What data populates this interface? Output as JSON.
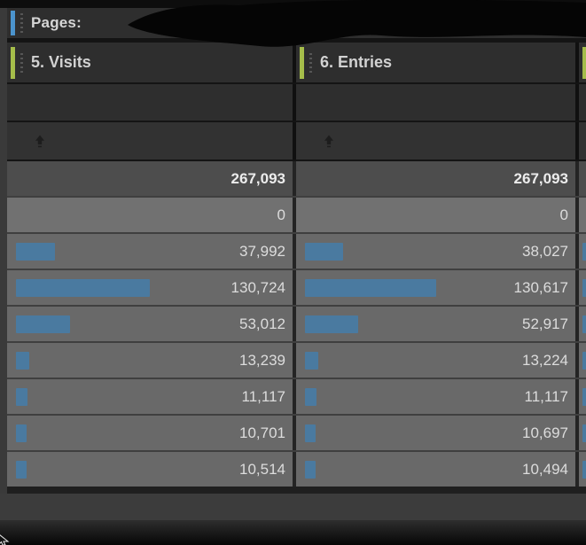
{
  "filter_bar": {
    "label": "Pages:",
    "value_redacted": true
  },
  "columns": [
    {
      "label": "5. Visits"
    },
    {
      "label": "6. Entries"
    }
  ],
  "clipped_next_column": true,
  "icons": {
    "drag_handle": "vertical-dots",
    "sort_indicator": "up-arrow"
  },
  "table": {
    "bar_total_reference": 267093,
    "rows": [
      {
        "type": "total",
        "values": [
          267093,
          267093
        ],
        "display": [
          "267,093",
          "267,093"
        ],
        "bars": false
      },
      {
        "type": "light",
        "values": [
          0,
          0
        ],
        "display": [
          "0",
          "0"
        ],
        "bars": false
      },
      {
        "type": "data",
        "values": [
          37992,
          38027
        ],
        "display": [
          "37,992",
          "38,027"
        ],
        "bars": true
      },
      {
        "type": "data",
        "values": [
          130724,
          130617
        ],
        "display": [
          "130,724",
          "130,617"
        ],
        "bars": true
      },
      {
        "type": "data",
        "values": [
          53012,
          52917
        ],
        "display": [
          "53,012",
          "52,917"
        ],
        "bars": true
      },
      {
        "type": "data",
        "values": [
          13239,
          13224
        ],
        "display": [
          "13,239",
          "13,224"
        ],
        "bars": true
      },
      {
        "type": "data",
        "values": [
          11117,
          11117
        ],
        "display": [
          "11,117",
          "11,117"
        ],
        "bars": true
      },
      {
        "type": "data",
        "values": [
          10701,
          10697
        ],
        "display": [
          "10,701",
          "10,697"
        ],
        "bars": true
      },
      {
        "type": "data",
        "values": [
          10514,
          10494
        ],
        "display": [
          "10,514",
          "10,494"
        ],
        "bars": true
      }
    ]
  },
  "colors": {
    "accent_blue": "#4b93cc",
    "accent_green": "#a5bd4a",
    "bar_blue": "#4a7aa0",
    "row_total_bg": "#4d4d4d",
    "row_light_bg": "#717171",
    "row_data_bg": "#696969",
    "panel_bg": "#2e2e2e"
  }
}
